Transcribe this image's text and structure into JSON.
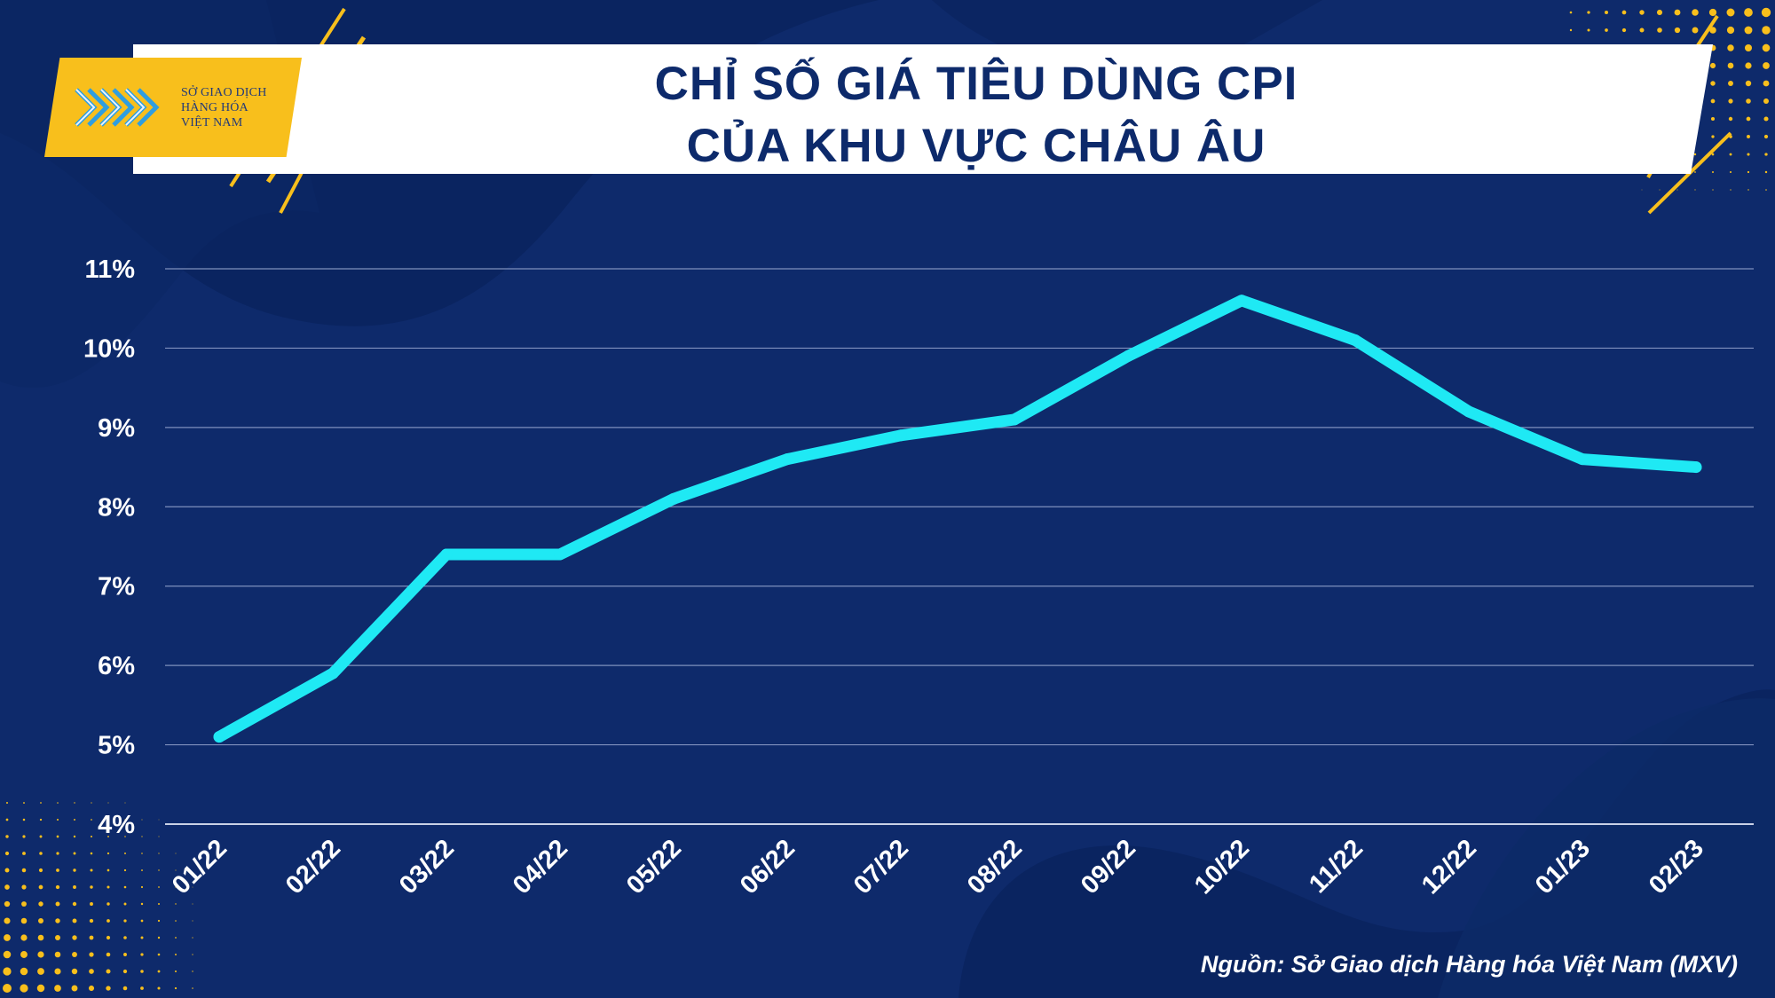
{
  "title": {
    "line1": "CHỈ SỐ GIÁ TIÊU DÙNG CPI",
    "line2": "CỦA KHU VỰC CHÂU ÂU"
  },
  "logo": {
    "line1": "SỞ GIAO DỊCH",
    "line2": "HÀNG HÓA",
    "line3": "VIỆT NAM"
  },
  "source": "Nguồn: Sở Giao dịch Hàng hóa Việt Nam (MXV)",
  "colors": {
    "background": "#0e2a6b",
    "line": "#1fe9f4",
    "accent": "#f8bf1c",
    "title_text": "#0d2a6b",
    "grid": "#7f90bd"
  },
  "chart_data": {
    "type": "line",
    "title": "CHỈ SỐ GIÁ TIÊU DÙNG CPI CỦA KHU VỰC CHÂU ÂU",
    "categories": [
      "01/22",
      "02/22",
      "03/22",
      "04/22",
      "05/22",
      "06/22",
      "07/22",
      "08/22",
      "09/22",
      "10/22",
      "11/22",
      "12/22",
      "01/23",
      "02/23"
    ],
    "series": [
      {
        "values": [
          5.1,
          5.9,
          7.4,
          7.4,
          8.1,
          8.6,
          8.9,
          9.1,
          9.9,
          10.6,
          10.1,
          9.2,
          8.6,
          8.5
        ]
      }
    ],
    "yticks": [
      "4%",
      "5%",
      "6%",
      "7%",
      "8%",
      "9%",
      "10%",
      "11%"
    ],
    "ylim": [
      4,
      11
    ],
    "grid": true,
    "legend": "none"
  }
}
